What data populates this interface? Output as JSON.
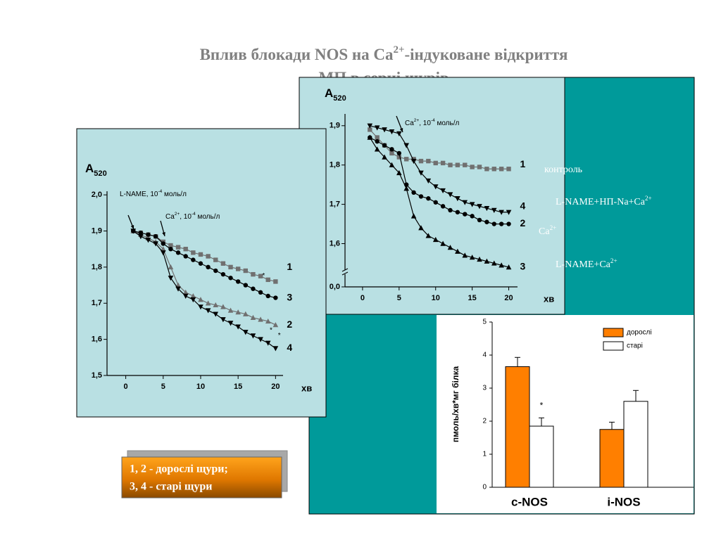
{
  "title": [
    [
      "Вплив блокади NOS на Ca",
      {
        "sup": "2+"
      },
      "-індуковане відкриття"
    ],
    [
      "МП в серці щурів"
    ]
  ],
  "labels": [
    [
      "контроль"
    ],
    [
      "L-NAME+НП-Na+Ca",
      {
        "sup": "2+"
      }
    ],
    [
      "Ca",
      {
        "sup": "2+"
      }
    ],
    [
      "L-NAME+Ca",
      {
        "sup": "2+"
      }
    ]
  ],
  "note": [
    "1, 2 - дорослі щури;",
    "3, 4 - старі щури"
  ],
  "chart_data": [
    {
      "type": "line",
      "ylabel": [
        "A",
        {
          "sub": "520"
        }
      ],
      "xlabel": "хв",
      "xlim": [
        -2.5,
        21
      ],
      "xticks": [
        0,
        5,
        10,
        15,
        20
      ],
      "ylim": [
        1.5,
        2.01
      ],
      "yticks": [
        {
          "value": 1.5,
          "label": "1,5"
        },
        {
          "value": 1.6,
          "label": "1,6"
        },
        {
          "value": 1.7,
          "label": "1,7"
        },
        {
          "value": 1.8,
          "label": "1,8"
        },
        {
          "value": 1.9,
          "label": "1,9"
        },
        {
          "value": 2.0,
          "label": "2,0"
        }
      ],
      "x": [
        1,
        2,
        3,
        4,
        5,
        6,
        7,
        8,
        9,
        10,
        11,
        12,
        13,
        14,
        15,
        16,
        17,
        18,
        19,
        20
      ],
      "series": [
        {
          "name": "1",
          "color": "#707070",
          "marker": "square",
          "values": [
            1.9,
            1.895,
            1.89,
            1.885,
            1.87,
            1.86,
            1.855,
            1.85,
            1.84,
            1.835,
            1.83,
            1.82,
            1.81,
            1.8,
            1.795,
            1.79,
            1.78,
            1.775,
            1.765,
            1.76
          ]
        },
        {
          "name": "2",
          "color": "#707070",
          "marker": "triangle-up",
          "values": [
            1.9,
            1.89,
            1.88,
            1.87,
            1.85,
            1.8,
            1.75,
            1.73,
            1.72,
            1.71,
            1.7,
            1.695,
            1.69,
            1.68,
            1.675,
            1.67,
            1.66,
            1.655,
            1.65,
            1.64
          ]
        },
        {
          "name": "3",
          "color": "#000000",
          "marker": "circle",
          "values": [
            1.9,
            1.895,
            1.89,
            1.885,
            1.865,
            1.85,
            1.84,
            1.83,
            1.82,
            1.81,
            1.8,
            1.79,
            1.78,
            1.77,
            1.76,
            1.75,
            1.74,
            1.73,
            1.72,
            1.715
          ]
        },
        {
          "name": "4",
          "color": "#000000",
          "marker": "triangle-down",
          "values": [
            1.9,
            1.885,
            1.875,
            1.865,
            1.84,
            1.77,
            1.74,
            1.72,
            1.71,
            1.69,
            1.68,
            1.67,
            1.655,
            1.645,
            1.635,
            1.62,
            1.61,
            1.6,
            1.59,
            1.575
          ]
        }
      ],
      "annotations": [
        [
          "L-NAME, 10",
          {
            "sup": "-4"
          },
          " моль/л"
        ],
        [
          "Ca",
          {
            "sup": "2+"
          },
          ", 10",
          {
            "sup": "-4"
          },
          " моль/л"
        ]
      ],
      "stars": [
        {
          "text": "*",
          "x": 18.4,
          "y": 1.776
        },
        {
          "text": "*",
          "x": 19.4,
          "y": 1.625
        },
        {
          "text": "*",
          "x": 20.5,
          "y": 1.61
        }
      ]
    },
    {
      "type": "line",
      "ylabel": [
        "A",
        {
          "sub": "520"
        }
      ],
      "xlabel": "хв",
      "xlim": [
        -2.4,
        21.2
      ],
      "xticks": [
        0,
        5,
        10,
        15,
        20
      ],
      "ylim": [
        1.49,
        1.93
      ],
      "yticks": [
        {
          "value": 1.6,
          "label": "1,6"
        },
        {
          "value": 1.7,
          "label": "1,7"
        },
        {
          "value": 1.8,
          "label": "1,8"
        },
        {
          "value": 1.9,
          "label": "1,9"
        }
      ],
      "break_tick": {
        "value": 0,
        "label": "0,0"
      },
      "x": [
        1,
        2,
        3,
        4,
        5,
        6,
        7,
        8,
        9,
        10,
        11,
        12,
        13,
        14,
        15,
        16,
        17,
        18,
        19,
        20
      ],
      "series": [
        {
          "name": "1",
          "color": "#707070",
          "marker": "square",
          "values": [
            1.89,
            1.87,
            1.85,
            1.83,
            1.82,
            1.815,
            1.815,
            1.81,
            1.81,
            1.805,
            1.805,
            1.8,
            1.8,
            1.8,
            1.795,
            1.795,
            1.79,
            1.79,
            1.79,
            1.79
          ]
        },
        {
          "name": "2",
          "color": "#000000",
          "marker": "circle",
          "values": [
            1.87,
            1.86,
            1.85,
            1.84,
            1.83,
            1.75,
            1.73,
            1.72,
            1.715,
            1.705,
            1.695,
            1.685,
            1.68,
            1.675,
            1.67,
            1.66,
            1.655,
            1.65,
            1.65,
            1.65
          ]
        },
        {
          "name": "3",
          "color": "#000000",
          "marker": "triangle-up",
          "values": [
            1.87,
            1.84,
            1.82,
            1.8,
            1.78,
            1.74,
            1.67,
            1.64,
            1.62,
            1.61,
            1.6,
            1.59,
            1.58,
            1.57,
            1.565,
            1.56,
            1.555,
            1.55,
            1.545,
            1.54
          ]
        },
        {
          "name": "4",
          "color": "#000000",
          "marker": "triangle-down",
          "values": [
            1.9,
            1.895,
            1.89,
            1.885,
            1.88,
            1.85,
            1.81,
            1.78,
            1.76,
            1.745,
            1.735,
            1.725,
            1.715,
            1.705,
            1.7,
            1.695,
            1.69,
            1.685,
            1.68,
            1.68
          ]
        }
      ],
      "annotations": [
        [
          "Ca",
          {
            "sup": "2+"
          },
          ", 10",
          {
            "sup": "-4"
          },
          " моль/л"
        ]
      ]
    },
    {
      "type": "bar",
      "ylabel": "пмоль/хв*мг білка",
      "categories": [
        "c-NOS",
        "i-NOS"
      ],
      "ylim": [
        0,
        5
      ],
      "yticks": [
        0,
        1,
        2,
        3,
        4,
        5
      ],
      "series": [
        {
          "name": "дорослі",
          "color": "#ff7f00",
          "values": [
            3.65,
            1.75
          ],
          "errors": [
            0.28,
            0.22
          ]
        },
        {
          "name": "старі",
          "color": "#ffffff",
          "values": [
            1.85,
            2.6
          ],
          "errors": [
            0.25,
            0.33
          ]
        }
      ],
      "annotations": [
        "*"
      ]
    }
  ]
}
